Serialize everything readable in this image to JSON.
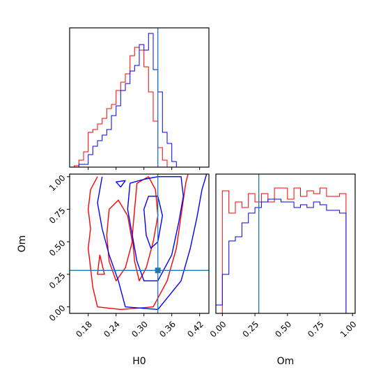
{
  "chart_data": {
    "type": "corner",
    "parameters": [
      "H0",
      "Om"
    ],
    "truths": {
      "H0": 0.33,
      "Om": 0.28
    },
    "truth_color": "#1f77b4",
    "series_colors": [
      "#ff0000",
      "#0000ff"
    ],
    "panels": [
      {
        "id": "hist-H0",
        "type": "step-histogram",
        "xlim": [
          0.14,
          0.44
        ],
        "bin_width": 0.01,
        "bin_start": 0.14,
        "series": [
          {
            "color": "#ff0000",
            "values": [
              0.0,
              0.01,
              0.05,
              0.11,
              0.25,
              0.27,
              0.31,
              0.35,
              0.42,
              0.45,
              0.55,
              0.61,
              0.67,
              0.8,
              0.86,
              0.84,
              0.72,
              0.54,
              0.33,
              0.14,
              0.05,
              0.0,
              0.0,
              0.0,
              0.0,
              0.0,
              0.0,
              0.0,
              0.0,
              0.0
            ]
          },
          {
            "color": "#0000ff",
            "values": [
              0.0,
              0.0,
              0.02,
              0.02,
              0.09,
              0.15,
              0.19,
              0.23,
              0.27,
              0.37,
              0.44,
              0.55,
              0.6,
              0.69,
              0.73,
              0.88,
              0.84,
              0.96,
              0.7,
              0.54,
              0.25,
              0.17,
              0.04,
              0.0,
              0.0,
              0.0,
              0.0,
              0.0,
              0.0,
              0.0
            ]
          }
        ]
      },
      {
        "id": "hist-Om",
        "type": "step-histogram",
        "xlim": [
          -0.05,
          1.02
        ],
        "bin_width": 0.05,
        "bin_start": -0.05,
        "series": [
          {
            "color": "#ff0000",
            "values": [
              0.0,
              0.88,
              0.72,
              0.8,
              0.76,
              0.86,
              0.8,
              0.86,
              0.8,
              0.9,
              0.9,
              0.82,
              0.9,
              0.84,
              0.88,
              0.86,
              0.9,
              0.84,
              0.84,
              0.86,
              0.0
            ]
          },
          {
            "color": "#0000ff",
            "values": [
              0.06,
              0.28,
              0.52,
              0.55,
              0.65,
              0.72,
              0.76,
              0.8,
              0.82,
              0.82,
              0.8,
              0.8,
              0.76,
              0.78,
              0.76,
              0.8,
              0.78,
              0.74,
              0.74,
              0.72,
              0.0
            ]
          }
        ]
      },
      {
        "id": "contour-H0-Om",
        "type": "contour",
        "xlim": [
          0.14,
          0.44
        ],
        "ylim": [
          -0.05,
          1.02
        ],
        "series": [
          {
            "color": "#ff0000",
            "lines": [
              [
                [
                  0.2,
                  1.0
                ],
                [
                  0.185,
                  0.9
                ],
                [
                  0.18,
                  0.75
                ],
                [
                  0.185,
                  0.6
                ],
                [
                  0.18,
                  0.45
                ],
                [
                  0.185,
                  0.3
                ],
                [
                  0.19,
                  0.15
                ],
                [
                  0.2,
                  0.0
                ],
                [
                  0.25,
                  -0.02
                ],
                [
                  0.32,
                  0.0
                ],
                [
                  0.35,
                  0.2
                ],
                [
                  0.37,
                  0.45
                ],
                [
                  0.38,
                  0.7
                ],
                [
                  0.39,
                  0.95
                ],
                [
                  0.395,
                  1.02
                ]
              ],
              [
                [
                  0.225,
                  0.75
                ],
                [
                  0.22,
                  0.55
                ],
                [
                  0.225,
                  0.35
                ],
                [
                  0.24,
                  0.2
                ],
                [
                  0.26,
                  0.3
                ],
                [
                  0.275,
                  0.5
                ],
                [
                  0.265,
                  0.7
                ],
                [
                  0.245,
                  0.82
                ],
                [
                  0.225,
                  0.75
                ]
              ],
              [
                [
                  0.285,
                  0.95
                ],
                [
                  0.28,
                  0.75
                ],
                [
                  0.275,
                  0.55
                ],
                [
                  0.28,
                  0.35
                ],
                [
                  0.29,
                  0.2
                ],
                [
                  0.305,
                  0.3
                ],
                [
                  0.32,
                  0.5
                ],
                [
                  0.33,
                  0.7
                ],
                [
                  0.325,
                  0.9
                ],
                [
                  0.31,
                  1.0
                ],
                [
                  0.285,
                  0.95
                ]
              ],
              [
                [
                  0.205,
                  0.4
                ],
                [
                  0.2,
                  0.25
                ],
                [
                  0.215,
                  0.25
                ],
                [
                  0.205,
                  0.4
                ]
              ]
            ]
          },
          {
            "color": "#0000ff",
            "lines": [
              [
                [
                  0.21,
                  1.0
                ],
                [
                  0.2,
                  0.8
                ],
                [
                  0.21,
                  0.6
                ],
                [
                  0.225,
                  0.4
                ],
                [
                  0.245,
                  0.2
                ],
                [
                  0.26,
                  0.0
                ],
                [
                  0.33,
                  -0.02
                ],
                [
                  0.38,
                  0.2
                ],
                [
                  0.4,
                  0.45
                ],
                [
                  0.415,
                  0.7
                ],
                [
                  0.425,
                  0.9
                ],
                [
                  0.435,
                  1.02
                ]
              ],
              [
                [
                  0.27,
                  0.95
                ],
                [
                  0.265,
                  0.75
                ],
                [
                  0.275,
                  0.55
                ],
                [
                  0.285,
                  0.35
                ],
                [
                  0.3,
                  0.2
                ],
                [
                  0.33,
                  0.2
                ],
                [
                  0.36,
                  0.4
                ],
                [
                  0.375,
                  0.65
                ],
                [
                  0.385,
                  0.85
                ],
                [
                  0.38,
                  1.0
                ],
                [
                  0.33,
                  1.0
                ],
                [
                  0.3,
                  0.98
                ],
                [
                  0.27,
                  0.95
                ]
              ],
              [
                [
                  0.3,
                  0.75
                ],
                [
                  0.305,
                  0.55
                ],
                [
                  0.315,
                  0.45
                ],
                [
                  0.33,
                  0.5
                ],
                [
                  0.34,
                  0.7
                ],
                [
                  0.33,
                  0.85
                ],
                [
                  0.31,
                  0.85
                ],
                [
                  0.3,
                  0.75
                ]
              ],
              [
                [
                  0.25,
                  0.92
                ],
                [
                  0.24,
                  0.96
                ],
                [
                  0.26,
                  0.97
                ],
                [
                  0.25,
                  0.92
                ]
              ]
            ]
          }
        ]
      }
    ],
    "ticks": {
      "H0": [
        "0.18",
        "0.24",
        "0.30",
        "0.36",
        "0.42"
      ],
      "Om_y": [
        "0.00",
        "0.25",
        "0.50",
        "0.75",
        "1.00"
      ],
      "Om_x": [
        "0.00",
        "0.25",
        "0.50",
        "0.75",
        "1.00"
      ]
    },
    "xlabel_H0": "H0",
    "ylabel_Om": "Om",
    "xlabel_Om": "Om"
  }
}
